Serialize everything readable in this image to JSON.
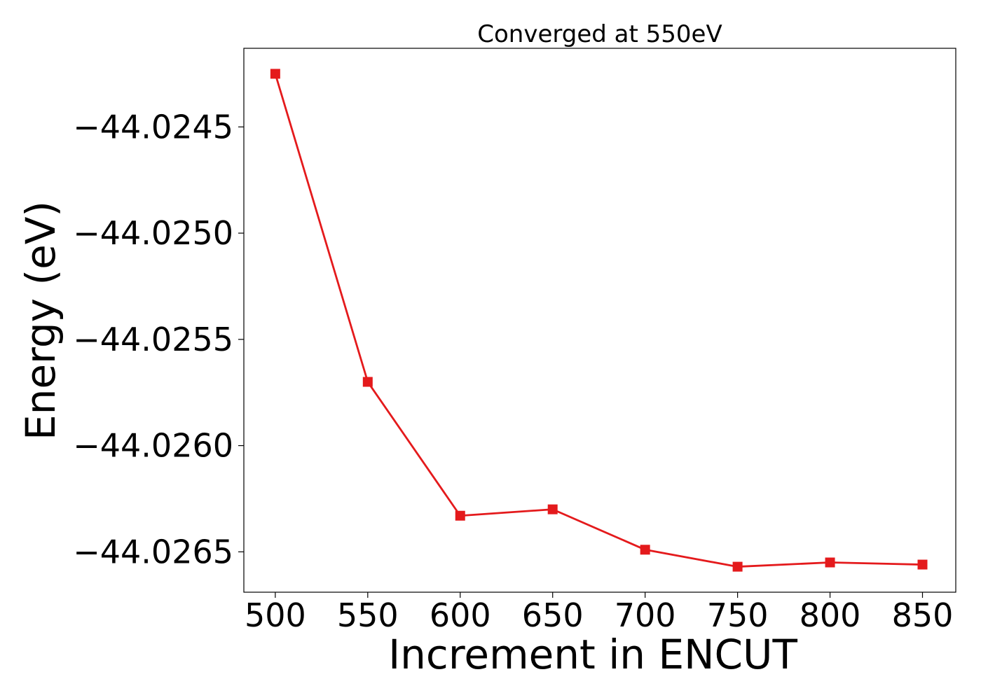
{
  "chart_data": {
    "type": "line",
    "title": "Converged at 550eV",
    "xlabel": "Increment in ENCUT",
    "ylabel": "Energy (eV)",
    "x": [
      500,
      550,
      600,
      650,
      700,
      750,
      800,
      850
    ],
    "series": [
      {
        "values": [
          -44.02425,
          -44.0257,
          -44.02633,
          -44.0263,
          -44.02649,
          -44.02657,
          -44.02655,
          -44.02656
        ],
        "color": "#e41a1c",
        "marker": "square"
      }
    ],
    "x_ticks": [
      500,
      550,
      600,
      650,
      700,
      750,
      800,
      850
    ],
    "x_tick_labels": [
      "500",
      "550",
      "600",
      "650",
      "700",
      "750",
      "800",
      "850"
    ],
    "y_ticks": [
      -44.0245,
      -44.025,
      -44.0255,
      -44.026,
      -44.0265
    ],
    "y_tick_labels": [
      "−44.0245",
      "−44.0250",
      "−44.0255",
      "−44.0260",
      "−44.0265"
    ],
    "xlim": [
      483,
      868
    ],
    "ylim": [
      -44.02669,
      -44.02413
    ],
    "grid": false,
    "legend": false
  }
}
